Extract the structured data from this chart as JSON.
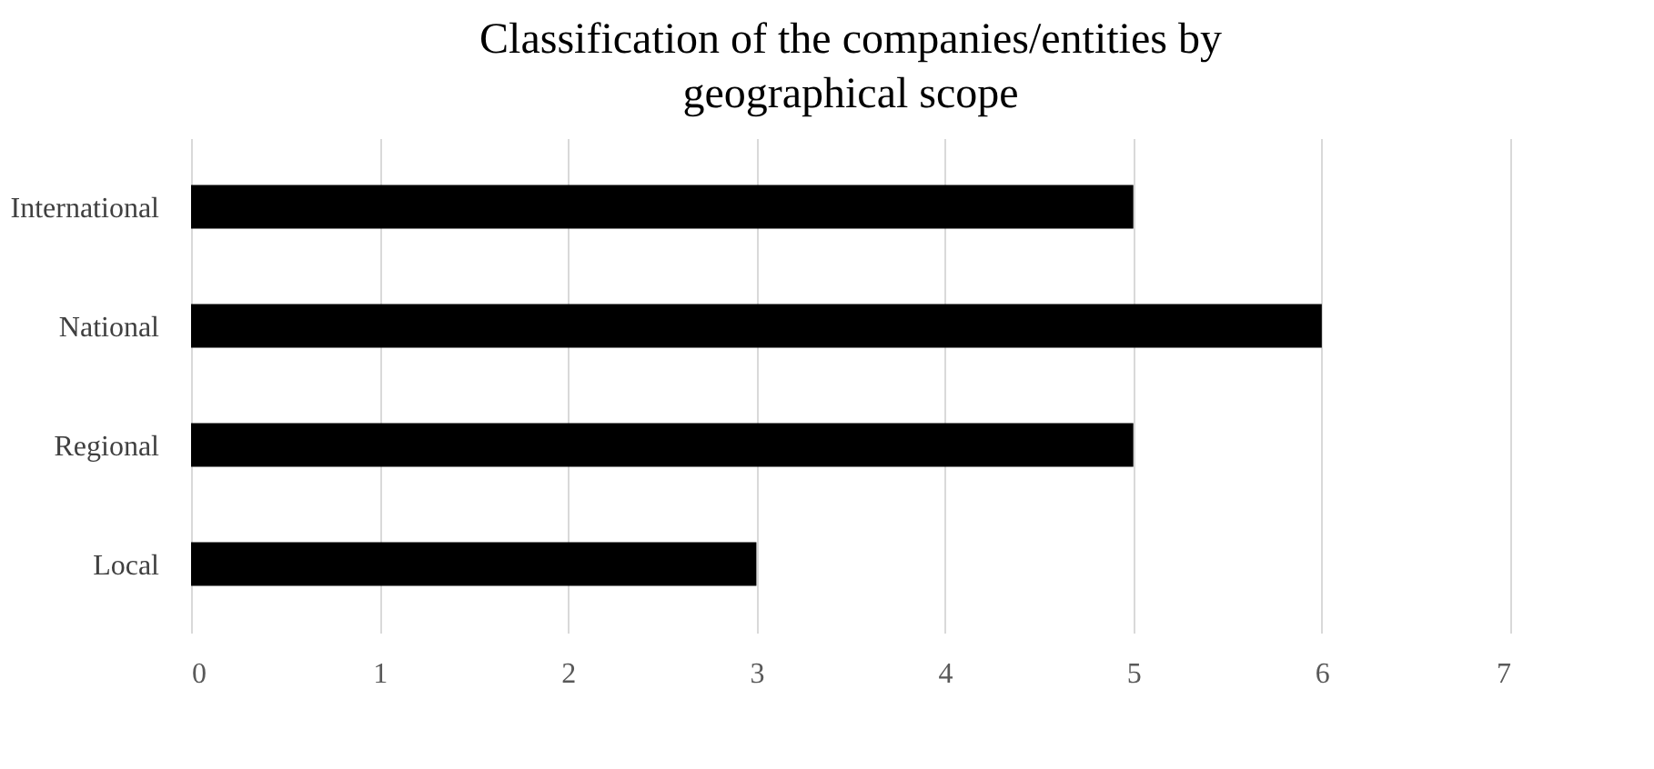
{
  "chart_data": {
    "type": "bar",
    "orientation": "horizontal",
    "title": "Classification of the companies/entities by geographical scope",
    "categories": [
      "International",
      "National",
      "Regional",
      "Local"
    ],
    "values": [
      5,
      6,
      5,
      3
    ],
    "color": "#000000",
    "xlim": [
      0,
      7
    ],
    "xticks": [
      0,
      1,
      2,
      3,
      4,
      5,
      6,
      7
    ],
    "grid": "x"
  }
}
